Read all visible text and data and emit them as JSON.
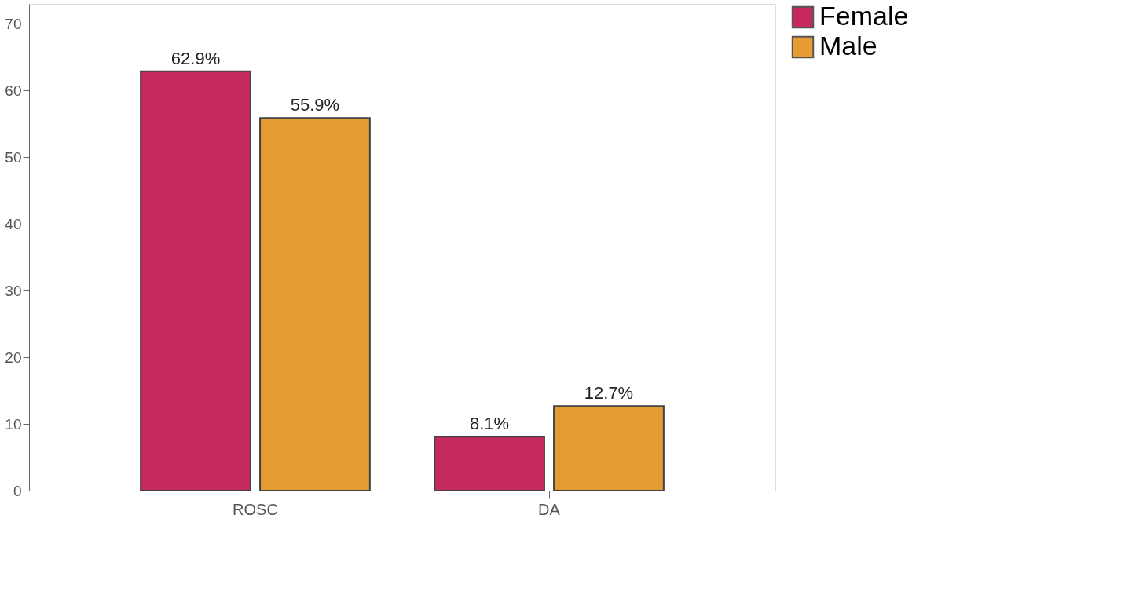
{
  "chart_data": {
    "type": "bar",
    "categories": [
      "ROSC",
      "DA"
    ],
    "series": [
      {
        "name": "Female",
        "color": "#c6295d",
        "values": [
          62.9,
          8.1
        ],
        "value_labels": [
          "62.9%",
          "8.1%"
        ]
      },
      {
        "name": "Male",
        "color": "#e69c33",
        "values": [
          55.9,
          12.7
        ],
        "value_labels": [
          "55.9%",
          "12.7%"
        ]
      }
    ],
    "ylim": [
      0,
      73
    ],
    "yticks": [
      0,
      10,
      20,
      30,
      40,
      50,
      60,
      70
    ],
    "grid": false,
    "legend": "right"
  }
}
